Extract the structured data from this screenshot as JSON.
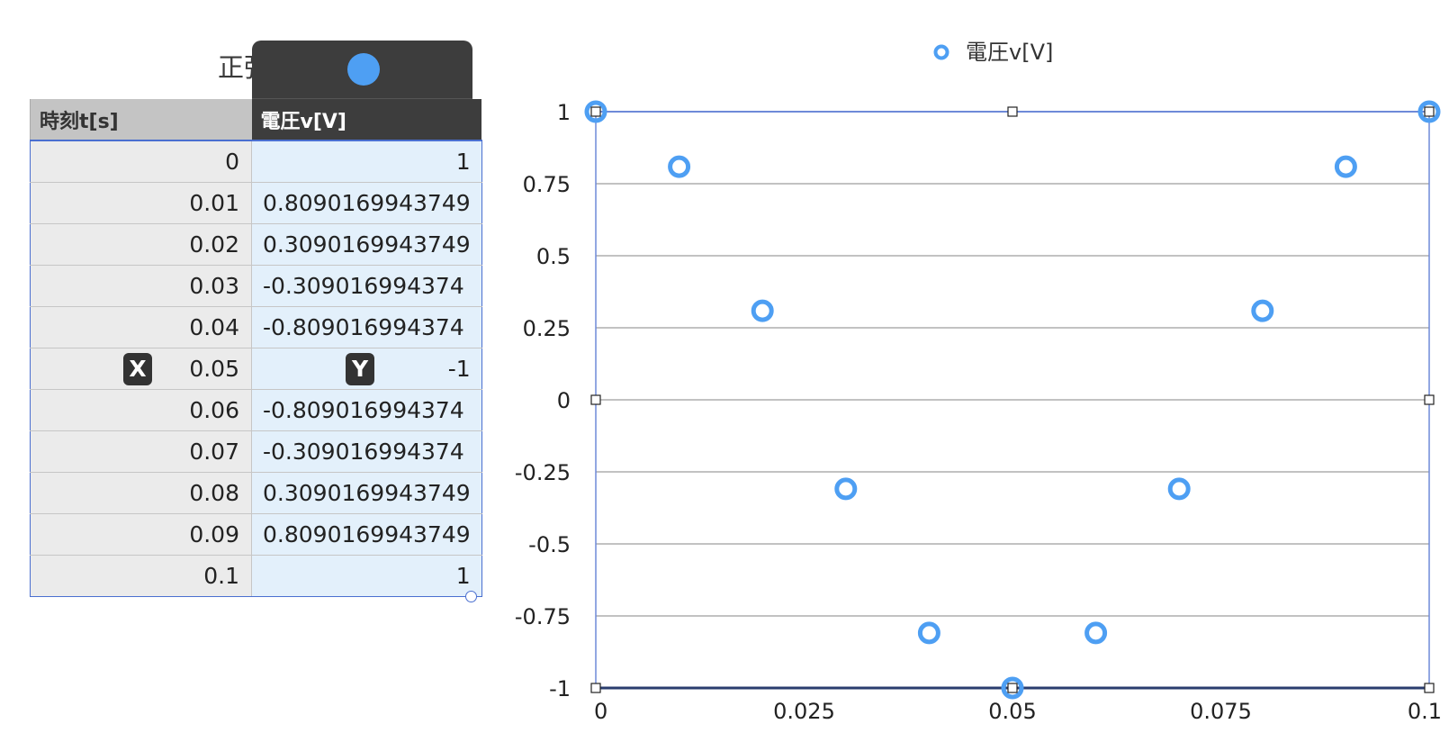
{
  "table": {
    "title": "正弦波データ",
    "x_header": "時刻t[s]",
    "y_header": "電圧v[V]",
    "x_marker": "X",
    "y_marker": "Y",
    "rows": [
      {
        "x": "0",
        "y": "1"
      },
      {
        "x": "0.01",
        "y": "0.8090169943749"
      },
      {
        "x": "0.02",
        "y": "0.3090169943749"
      },
      {
        "x": "0.03",
        "y": "-0.309016994374"
      },
      {
        "x": "0.04",
        "y": "-0.809016994374"
      },
      {
        "x": "0.05",
        "y": "-1"
      },
      {
        "x": "0.06",
        "y": "-0.809016994374"
      },
      {
        "x": "0.07",
        "y": "-0.309016994374"
      },
      {
        "x": "0.08",
        "y": "0.3090169943749"
      },
      {
        "x": "0.09",
        "y": "0.8090169943749"
      },
      {
        "x": "0.1",
        "y": "1"
      }
    ]
  },
  "chart_data": {
    "type": "scatter",
    "title": "",
    "xlabel": "",
    "ylabel": "",
    "xlim": [
      0,
      0.1
    ],
    "ylim": [
      -1,
      1
    ],
    "x_ticks": [
      "0",
      "0.025",
      "0.05",
      "0.075",
      "0.1"
    ],
    "y_ticks": [
      "1",
      "0.75",
      "0.5",
      "0.25",
      "0",
      "-0.25",
      "-0.5",
      "-0.75",
      "-1"
    ],
    "grid": "horizontal",
    "legend_position": "top-center",
    "series": [
      {
        "name": "電圧v[V]",
        "color": "#4e9ff3",
        "x": [
          0,
          0.01,
          0.02,
          0.03,
          0.04,
          0.05,
          0.06,
          0.07,
          0.08,
          0.09,
          0.1
        ],
        "y": [
          1,
          0.809,
          0.309,
          -0.309,
          -0.809,
          -1,
          -0.809,
          -0.309,
          0.309,
          0.809,
          1
        ]
      }
    ]
  },
  "colors": {
    "accent": "#4e9ff3",
    "header_dark": "#3d3d3d",
    "selection_blue": "#4a6fd0",
    "y_column_bg": "#e3f0fb"
  }
}
